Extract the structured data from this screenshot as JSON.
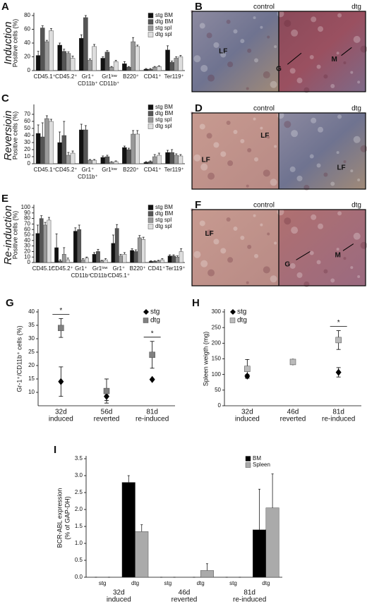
{
  "chart_data": [
    {
      "panel": "A",
      "type": "bar",
      "side_label": "Induction",
      "ylabel": [
        "Positive cells (%)"
      ],
      "categories": [
        [
          "CD45.1⁺"
        ],
        [
          "CD45.2⁺"
        ],
        [
          "Gr1⁺",
          "CD11b⁺"
        ],
        [
          "Gr1ˡᵒʷ",
          "CD11b⁺"
        ],
        [
          "B220⁺"
        ],
        [
          "CD41⁺"
        ],
        [
          "Ter119⁺"
        ]
      ],
      "ylim": [
        0,
        80
      ],
      "yticks": [
        0,
        20,
        40,
        60,
        80
      ],
      "legend": "upper right",
      "series": [
        {
          "name": "stg BM",
          "color": "#111111",
          "values": [
            22,
            37,
            47,
            18,
            10,
            2,
            30
          ],
          "errors": [
            6,
            3,
            5,
            2,
            3,
            1,
            6
          ]
        },
        {
          "name": "dtg BM",
          "color": "#555555",
          "values": [
            62,
            28,
            77,
            27,
            5,
            2,
            12
          ],
          "errors": [
            3,
            3,
            3,
            2,
            1,
            1,
            2
          ]
        },
        {
          "name": "stg spl",
          "color": "#999999",
          "values": [
            42,
            25,
            15,
            5,
            42,
            5,
            18
          ],
          "errors": [
            2,
            2,
            2,
            1,
            6,
            1,
            2
          ]
        },
        {
          "name": "dtg spl",
          "color": "#dddddd",
          "values": [
            58,
            18,
            35,
            13,
            35,
            6,
            20
          ],
          "errors": [
            3,
            3,
            3,
            2,
            2,
            1,
            2
          ]
        }
      ]
    },
    {
      "panel": "C",
      "type": "bar",
      "side_label": "Reversioin",
      "ylabel": [
        "Positive cells (%)"
      ],
      "categories": [
        [
          "CD45.1⁺"
        ],
        [
          "CD45.2⁺"
        ],
        [
          "Gr1⁺",
          "CD11b⁺"
        ],
        [
          "Gr1ˡᵒʷ"
        ],
        [
          "B220⁺"
        ],
        [
          "CD41⁺"
        ],
        [
          "Ter119⁺"
        ]
      ],
      "ylim": [
        0,
        80
      ],
      "yticks": [
        0,
        10,
        20,
        30,
        40,
        50,
        60,
        70
      ],
      "legend": "upper right",
      "series": [
        {
          "name": "stg BM",
          "color": "#111111",
          "values": [
            43,
            30,
            48,
            9,
            23,
            2,
            16
          ],
          "errors": [
            12,
            15,
            8,
            2,
            2,
            1,
            3
          ]
        },
        {
          "name": "dtg BM",
          "color": "#555555",
          "values": [
            38,
            40,
            48,
            10,
            20,
            3,
            16
          ],
          "errors": [
            20,
            20,
            6,
            2,
            2,
            1,
            4
          ]
        },
        {
          "name": "stg spl",
          "color": "#999999",
          "values": [
            64,
            12,
            5,
            2,
            42,
            10,
            12
          ],
          "errors": [
            4,
            4,
            1,
            1,
            5,
            3,
            2
          ]
        },
        {
          "name": "dtg spl",
          "color": "#dddddd",
          "values": [
            60,
            15,
            5,
            3,
            42,
            12,
            11
          ],
          "errors": [
            3,
            3,
            1,
            1,
            5,
            3,
            2
          ]
        }
      ]
    },
    {
      "panel": "E",
      "type": "bar",
      "side_label": "Re-induction",
      "ylabel": [
        "Positive cells (%)"
      ],
      "categories": [
        [
          "CD45.1⁺"
        ],
        [
          "CD45.2⁺"
        ],
        [
          "Gr1⁺",
          "CD11b⁺"
        ],
        [
          "Gr1ˡᵒʷ",
          "CD11b⁺"
        ],
        [
          "Gr1⁺",
          "CD45.1⁺"
        ],
        [
          "B220⁺"
        ],
        [
          "CD41⁺"
        ],
        [
          "Ter119⁺"
        ]
      ],
      "ylim": [
        0,
        100
      ],
      "yticks": [
        0,
        10,
        20,
        30,
        40,
        50,
        60,
        70,
        80,
        90,
        100
      ],
      "legend": "upper right",
      "series": [
        {
          "name": "stg BM",
          "color": "#111111",
          "values": [
            53,
            27,
            57,
            15,
            35,
            22,
            2,
            12
          ],
          "errors": [
            15,
            25,
            6,
            3,
            15,
            3,
            1,
            2
          ]
        },
        {
          "name": "dtg BM",
          "color": "#555555",
          "values": [
            80,
            3,
            60,
            20,
            62,
            20,
            2,
            12
          ],
          "errors": [
            5,
            2,
            8,
            4,
            7,
            3,
            1,
            2
          ]
        },
        {
          "name": "stg spl",
          "color": "#999999",
          "values": [
            68,
            15,
            5,
            3,
            12,
            45,
            3,
            10
          ],
          "errors": [
            5,
            12,
            2,
            1,
            3,
            4,
            1,
            2
          ]
        },
        {
          "name": "dtg spl",
          "color": "#dddddd",
          "values": [
            77,
            5,
            8,
            5,
            15,
            42,
            5,
            20
          ],
          "errors": [
            5,
            3,
            2,
            2,
            3,
            4,
            2,
            5
          ]
        }
      ]
    },
    {
      "panel": "G",
      "type": "point",
      "ylabel": [
        "Gr-1⁺/CD11b⁺ cells (%)"
      ],
      "categories": [
        [
          "32d",
          "induced"
        ],
        [
          "56d",
          "reverted"
        ],
        [
          "81d",
          "re-induced"
        ]
      ],
      "ylim": [
        5,
        40
      ],
      "yticks": [
        10,
        15,
        20,
        25,
        30,
        35,
        40
      ],
      "legend": "upper right",
      "annotations": [
        {
          "text": "*",
          "category": 0
        },
        {
          "text": "*",
          "category": 2
        }
      ],
      "series": [
        {
          "name": "stg",
          "color": "#000000",
          "marker": "diamond",
          "values": [
            14,
            8.5,
            14.8
          ],
          "errors": [
            5.5,
            1.5,
            0
          ]
        },
        {
          "name": "dtg",
          "color": "#808080",
          "marker": "square",
          "values": [
            34,
            10.5,
            24
          ],
          "errors": [
            3.5,
            4.5,
            5
          ]
        }
      ]
    },
    {
      "panel": "H",
      "type": "point",
      "ylabel": [
        "Spleen weigth (mg)"
      ],
      "categories": [
        [
          "32d",
          "induced"
        ],
        [
          "46d",
          "reverted"
        ],
        [
          "81d",
          "re-induced"
        ]
      ],
      "ylim": [
        0,
        300
      ],
      "yticks": [
        0,
        50,
        100,
        150,
        200,
        250,
        300
      ],
      "legend": "upper left",
      "annotations": [
        {
          "text": "*",
          "category": 2
        }
      ],
      "series": [
        {
          "name": "stg",
          "color": "#000000",
          "marker": "diamond",
          "values": [
            95,
            140,
            107
          ],
          "errors": [
            5,
            0,
            15
          ]
        },
        {
          "name": "dtg",
          "color": "#bbbbbb",
          "marker": "square",
          "values": [
            118,
            140,
            210
          ],
          "errors": [
            30,
            8,
            30
          ]
        }
      ]
    },
    {
      "panel": "I",
      "type": "bar",
      "ylabel": [
        "BCR-ABL expression",
        "(% of GAP-DH)"
      ],
      "categories": [
        [
          "stg"
        ],
        [
          "dtg"
        ],
        [
          "stg"
        ],
        [
          "dtg"
        ],
        [
          "stg"
        ],
        [
          "dtg"
        ]
      ],
      "groups": [
        [
          "32d",
          "induced"
        ],
        [
          "46d",
          "reverted"
        ],
        [
          "81d",
          "re-induced"
        ]
      ],
      "ylim": [
        0,
        3.5
      ],
      "yticks": [
        {
          "value": 0,
          "label": "0.0"
        },
        0.5,
        {
          "value": 1,
          "label": "1.0"
        },
        1.5,
        {
          "value": 2,
          "label": "2.0"
        },
        2.5,
        {
          "value": 3,
          "label": "3.0"
        },
        3.5
      ],
      "legend": "upper right",
      "series": [
        {
          "name": "BM",
          "color": "#000000",
          "values": [
            0,
            2.8,
            0,
            0,
            0,
            1.4
          ],
          "errors": [
            0,
            0.2,
            0,
            0,
            0,
            1.2
          ]
        },
        {
          "name": "Spleen",
          "color": "#aaaaaa",
          "values": [
            0,
            1.35,
            0,
            0.2,
            0,
            2.05
          ],
          "errors": [
            0,
            0.2,
            0,
            0.2,
            0,
            1
          ]
        }
      ]
    }
  ],
  "images": [
    {
      "panel": "B",
      "left_label": "control",
      "right_label": "dtg",
      "labels": [
        "LF",
        "G",
        "M"
      ]
    },
    {
      "panel": "D",
      "left_label": "control",
      "right_label": "dtg",
      "labels": [
        "LF",
        "LF",
        "LF"
      ]
    },
    {
      "panel": "F",
      "left_label": "control",
      "right_label": "dtg",
      "labels": [
        "LF",
        "G",
        "M"
      ]
    }
  ]
}
